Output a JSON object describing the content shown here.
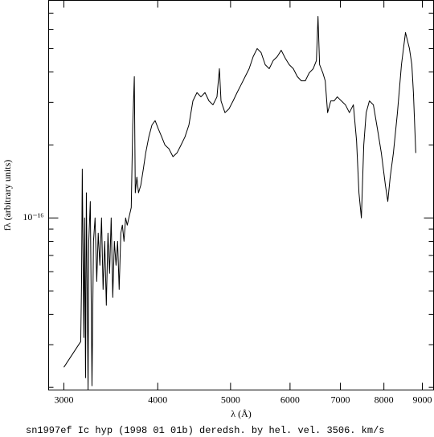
{
  "chart_data": {
    "type": "line",
    "xlabel": "λ (Å)",
    "ylabel": "fλ (arbitrary units)",
    "caption": "sn1997ef Ic hyp (1998 01 01b) deredsh. by hel. vel.  3506. km/s",
    "xlog": true,
    "ylog": true,
    "xlim": [
      2863,
      9316
    ],
    "ylim": [
      1.95e-17,
      7.9e-16
    ],
    "xticks": [
      3000,
      4000,
      5000,
      6000,
      7000,
      8000,
      9000
    ],
    "yticks": [
      {
        "value": 1e-16,
        "label": "10⁻¹⁶"
      }
    ],
    "yminor": [
      2e-17,
      3e-17,
      4e-17,
      5e-17,
      6e-17,
      7e-17,
      8e-17,
      9e-17,
      2e-16,
      3e-16,
      4e-16,
      5e-16,
      6e-16,
      7e-16
    ],
    "series": [
      {
        "color": "#000000",
        "x": [
          3000,
          3159,
          3167,
          3174,
          3189,
          3197,
          3206,
          3214,
          3231,
          3238,
          3253,
          3270,
          3285,
          3301,
          3318,
          3333,
          3350,
          3367,
          3383,
          3400,
          3417,
          3434,
          3451,
          3468,
          3485,
          3502,
          3520,
          3537,
          3554,
          3572,
          3589,
          3607,
          3625,
          3643,
          3661,
          3688,
          3705,
          3723,
          3734,
          3752,
          3771,
          3798,
          3827,
          3855,
          3892,
          3930,
          3968,
          4007,
          4049,
          4089,
          4139,
          4191,
          4243,
          4296,
          4348,
          4401,
          4455,
          4511,
          4566,
          4623,
          4680,
          4738,
          4796,
          4832,
          4856,
          4915,
          4976,
          5039,
          5101,
          5165,
          5229,
          5293,
          5359,
          5425,
          5491,
          5560,
          5629,
          5698,
          5769,
          5840,
          5913,
          5985,
          6060,
          6136,
          6211,
          6287,
          6364,
          6442,
          6505,
          6537,
          6569,
          6634,
          6683,
          6732,
          6798,
          6866,
          6935,
          7022,
          7110,
          7197,
          7285,
          7357,
          7411,
          7466,
          7521,
          7577,
          7652,
          7746,
          7843,
          7937,
          8036,
          8096,
          8156,
          8236,
          8339,
          8442,
          8547,
          8651,
          8715,
          8757,
          8821
        ],
        "values": [
          2.42e-17,
          3.09e-17,
          5.47e-17,
          1.59e-16,
          3.21e-17,
          1e-16,
          2.19e-17,
          1.27e-16,
          1.95e-17,
          8.01e-17,
          1.17e-16,
          2.03e-17,
          8.01e-17,
          1e-16,
          5.47e-17,
          8.65e-17,
          6.38e-17,
          1e-16,
          5.07e-17,
          8.01e-17,
          4.36e-17,
          8.65e-17,
          5.91e-17,
          1e-16,
          4.7e-17,
          8.01e-17,
          6.38e-17,
          8.01e-17,
          5.07e-17,
          8.65e-17,
          9.34e-17,
          8.01e-17,
          1e-16,
          9.34e-17,
          1e-16,
          1.104e-16,
          2.42e-16,
          3.83e-16,
          1.27e-16,
          1.475e-16,
          1.27e-16,
          1.367e-16,
          1.59e-16,
          1.854e-16,
          2.16e-16,
          2.42e-16,
          2.52e-16,
          2.33e-16,
          2.16e-16,
          2e-16,
          1.93e-16,
          1.79e-16,
          1.854e-16,
          2e-16,
          2.16e-16,
          2.42e-16,
          3.04e-16,
          3.29e-16,
          3.16e-16,
          3.29e-16,
          3.04e-16,
          2.93e-16,
          3.16e-16,
          4.13e-16,
          3.04e-16,
          2.72e-16,
          2.82e-16,
          3.04e-16,
          3.29e-16,
          3.55e-16,
          3.83e-16,
          4.13e-16,
          4.63e-16,
          5e-16,
          4.81e-16,
          4.29e-16,
          4.13e-16,
          4.46e-16,
          4.63e-16,
          4.92e-16,
          4.56e-16,
          4.29e-16,
          4.13e-16,
          3.83e-16,
          3.68e-16,
          3.68e-16,
          3.97e-16,
          4.13e-16,
          4.46e-16,
          6.78e-16,
          4.29e-16,
          3.97e-16,
          3.68e-16,
          2.72e-16,
          3.04e-16,
          3.04e-16,
          3.16e-16,
          3.04e-16,
          2.93e-16,
          2.72e-16,
          2.93e-16,
          2.08e-16,
          1.27e-16,
          1e-16,
          2e-16,
          2.72e-16,
          3.04e-16,
          2.93e-16,
          2.33e-16,
          1.854e-16,
          1.367e-16,
          1.17e-16,
          1.475e-16,
          1.854e-16,
          2.72e-16,
          4.29e-16,
          5.82e-16,
          5e-16,
          4.29e-16,
          3.29e-16,
          1.854e-16
        ]
      }
    ]
  }
}
